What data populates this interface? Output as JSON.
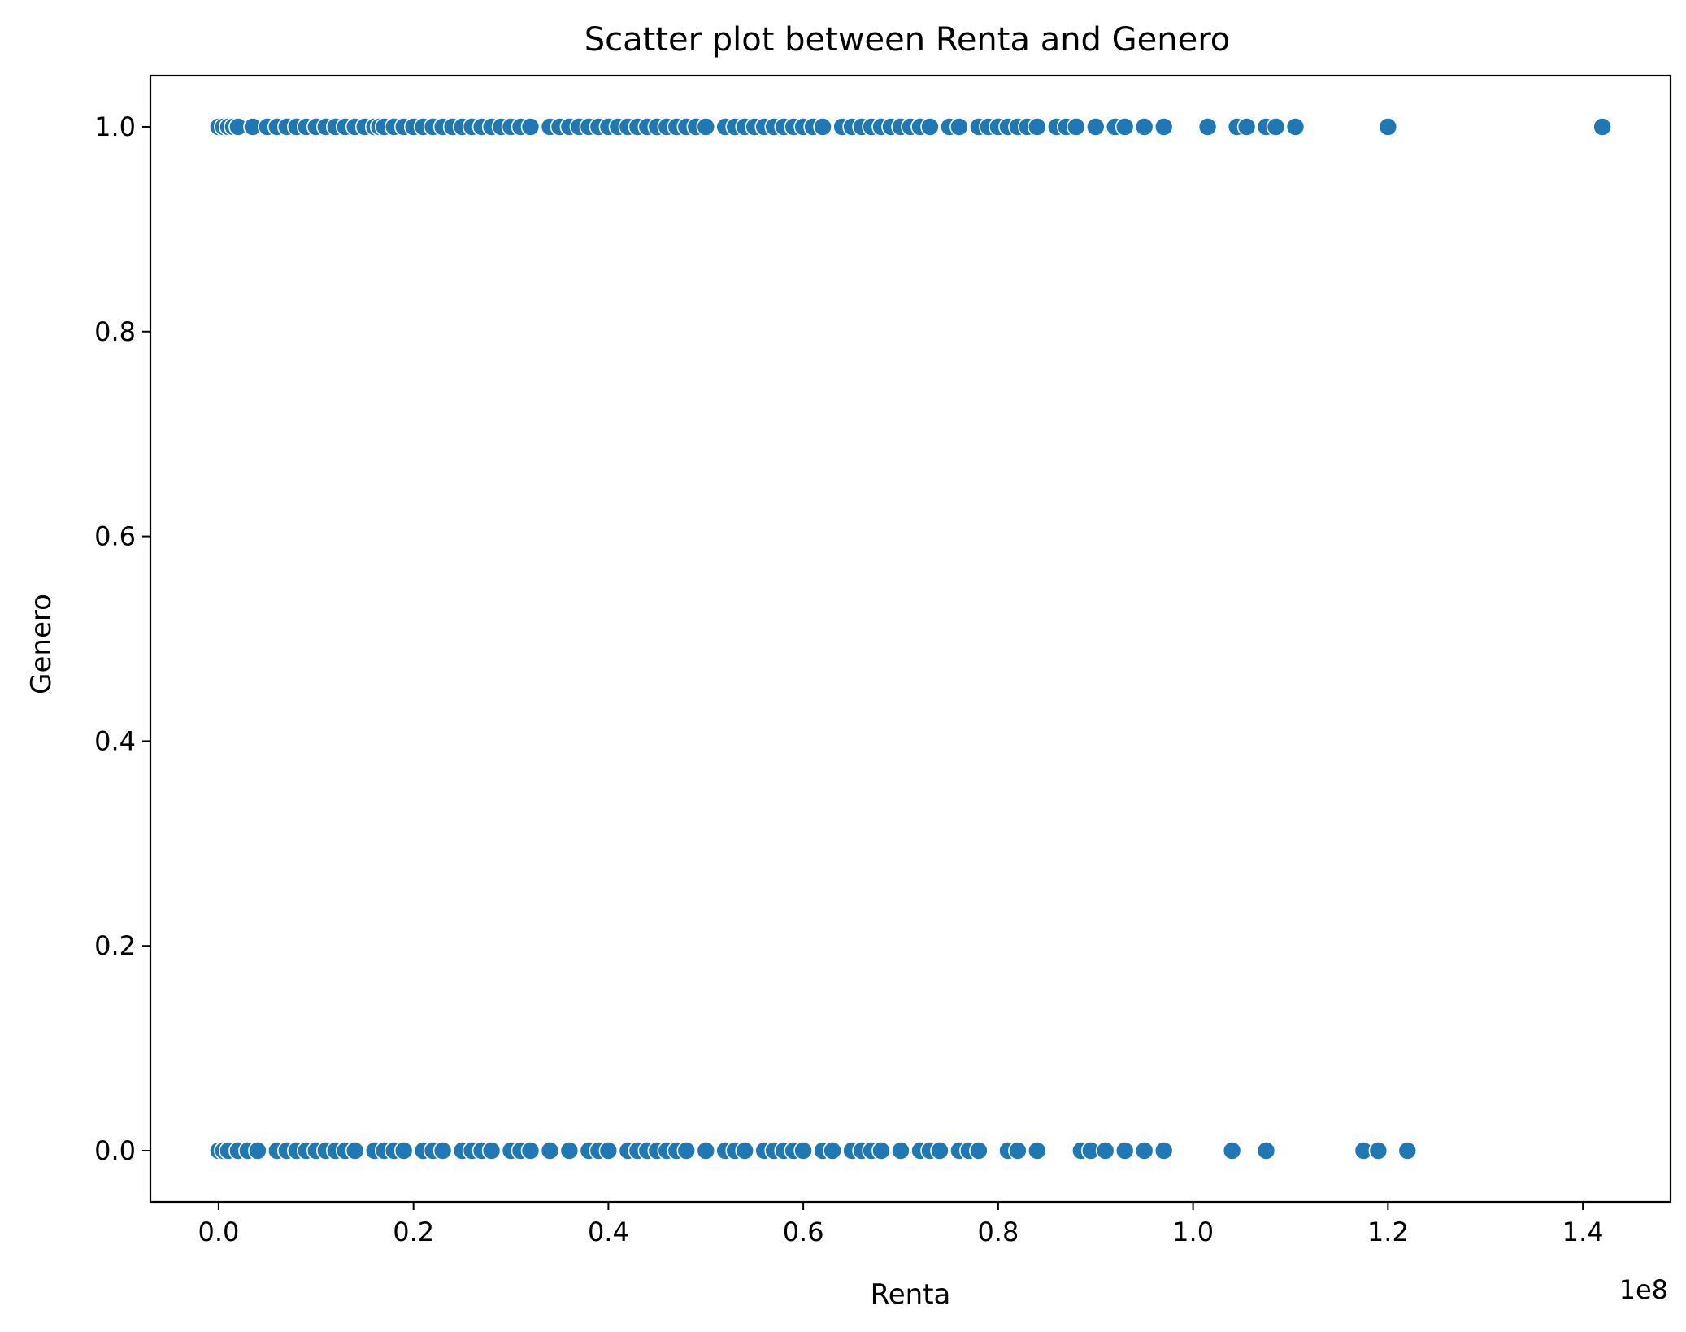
{
  "chart_data": {
    "type": "scatter",
    "title": "Scatter plot between Renta and Genero",
    "xlabel": "Renta",
    "ylabel": "Genero",
    "x_offset_label": "1e8",
    "xlim": [
      -0.07,
      1.49
    ],
    "ylim": [
      -0.05,
      1.05
    ],
    "x_ticks": [
      0.0,
      0.2,
      0.4,
      0.6,
      0.8,
      1.0,
      1.2,
      1.4
    ],
    "x_tick_labels": [
      "0.0",
      "0.2",
      "0.4",
      "0.6",
      "0.8",
      "1.0",
      "1.2",
      "1.4"
    ],
    "y_ticks": [
      0.0,
      0.2,
      0.4,
      0.6,
      0.8,
      1.0
    ],
    "y_tick_labels": [
      "0.0",
      "0.2",
      "0.4",
      "0.6",
      "0.8",
      "1.0"
    ],
    "grid": false,
    "marker_color": "#1f77b4",
    "marker_edge": "#ffffff",
    "series": [
      {
        "y": 1,
        "x": [
          0.0,
          0.005,
          0.01,
          0.015,
          0.02,
          0.035,
          0.05,
          0.06,
          0.07,
          0.08,
          0.09,
          0.1,
          0.11,
          0.12,
          0.13,
          0.14,
          0.15,
          0.16,
          0.165,
          0.17,
          0.18,
          0.19,
          0.2,
          0.21,
          0.22,
          0.23,
          0.24,
          0.25,
          0.26,
          0.27,
          0.28,
          0.29,
          0.3,
          0.31,
          0.32,
          0.34,
          0.35,
          0.36,
          0.37,
          0.38,
          0.39,
          0.4,
          0.41,
          0.42,
          0.43,
          0.44,
          0.45,
          0.46,
          0.47,
          0.48,
          0.49,
          0.5,
          0.52,
          0.53,
          0.54,
          0.55,
          0.56,
          0.57,
          0.58,
          0.59,
          0.6,
          0.61,
          0.62,
          0.64,
          0.65,
          0.66,
          0.67,
          0.68,
          0.69,
          0.7,
          0.71,
          0.72,
          0.73,
          0.75,
          0.76,
          0.78,
          0.79,
          0.8,
          0.81,
          0.82,
          0.83,
          0.84,
          0.86,
          0.87,
          0.88,
          0.9,
          0.92,
          0.93,
          0.95,
          0.97,
          1.015,
          1.045,
          1.055,
          1.075,
          1.085,
          1.105,
          1.2,
          1.42
        ]
      },
      {
        "y": 0,
        "x": [
          0.0,
          0.005,
          0.01,
          0.02,
          0.03,
          0.04,
          0.06,
          0.07,
          0.08,
          0.09,
          0.1,
          0.11,
          0.12,
          0.13,
          0.14,
          0.16,
          0.17,
          0.18,
          0.19,
          0.21,
          0.22,
          0.23,
          0.25,
          0.26,
          0.27,
          0.28,
          0.3,
          0.31,
          0.32,
          0.34,
          0.36,
          0.38,
          0.39,
          0.4,
          0.42,
          0.43,
          0.44,
          0.45,
          0.46,
          0.47,
          0.48,
          0.5,
          0.52,
          0.53,
          0.54,
          0.56,
          0.57,
          0.58,
          0.59,
          0.6,
          0.62,
          0.63,
          0.65,
          0.66,
          0.67,
          0.68,
          0.7,
          0.72,
          0.73,
          0.74,
          0.76,
          0.77,
          0.78,
          0.81,
          0.82,
          0.84,
          0.885,
          0.895,
          0.91,
          0.93,
          0.95,
          0.97,
          1.04,
          1.075,
          1.175,
          1.19,
          1.22
        ]
      }
    ]
  }
}
